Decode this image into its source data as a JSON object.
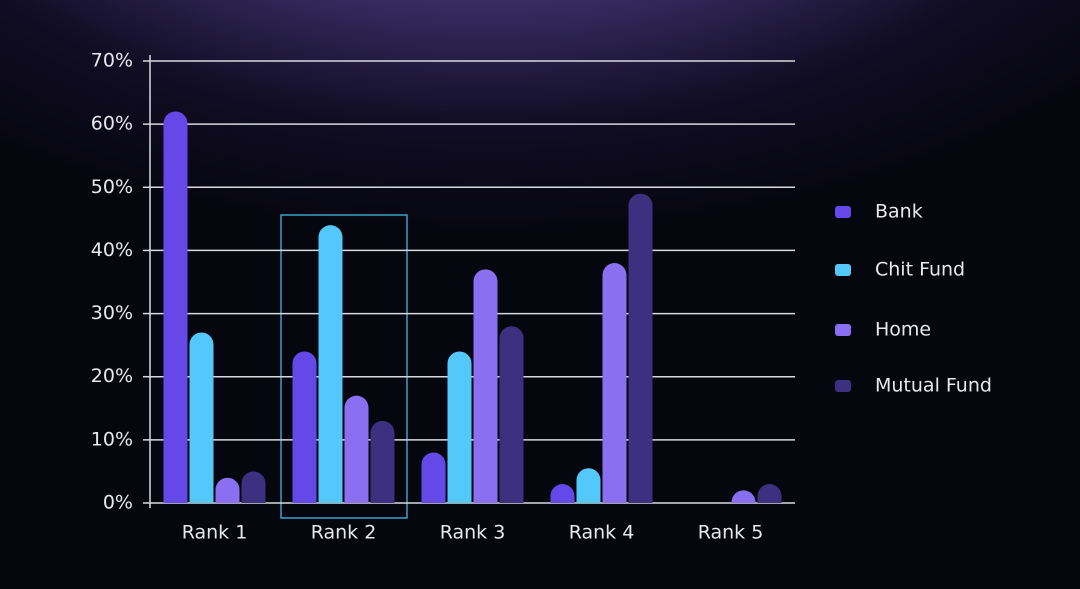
{
  "chart_data": {
    "type": "bar",
    "categories": [
      "Rank 1",
      "Rank 2",
      "Rank 3",
      "Rank 4",
      "Rank 5"
    ],
    "series": [
      {
        "name": "Bank",
        "color": "#6448e8",
        "values": [
          62,
          24,
          8,
          3,
          null
        ]
      },
      {
        "name": "Chit Fund",
        "color": "#55c8fb",
        "values": [
          27,
          44,
          24,
          5.5,
          null
        ]
      },
      {
        "name": "Home",
        "color": "#8a70f0",
        "values": [
          4,
          17,
          37,
          38,
          2
        ]
      },
      {
        "name": "Mutual Fund",
        "color": "#3e3080",
        "values": [
          5,
          13,
          28,
          49,
          3
        ]
      }
    ],
    "ylim": [
      0,
      70
    ],
    "yticks": [
      {
        "value": 0,
        "label": "0%"
      },
      {
        "value": 10,
        "label": "10%"
      },
      {
        "value": 20,
        "label": "20%"
      },
      {
        "value": 30,
        "label": "30%"
      },
      {
        "value": 40,
        "label": "40%"
      },
      {
        "value": 50,
        "label": "50%"
      },
      {
        "value": 60,
        "label": "60%"
      },
      {
        "value": 70,
        "label": "70%"
      }
    ],
    "grid": true,
    "legend": "right"
  }
}
